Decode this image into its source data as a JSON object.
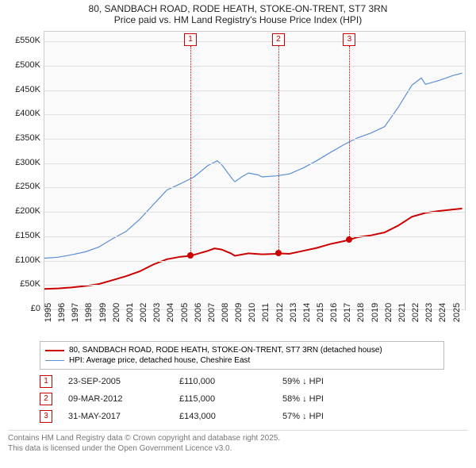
{
  "title1": "80, SANDBACH ROAD, RODE HEATH, STOKE-ON-TRENT, ST7 3RN",
  "title2": "Price paid vs. HM Land Registry's House Price Index (HPI)",
  "chart": {
    "type": "line",
    "background": "#fafafa",
    "grid_color": "#e0e0e0",
    "border_color": "#cccccc",
    "x": {
      "min": 1995,
      "max": 2025.9,
      "ticks": [
        1995,
        1996,
        1997,
        1998,
        1999,
        2000,
        2001,
        2002,
        2003,
        2004,
        2005,
        2006,
        2007,
        2008,
        2009,
        2010,
        2011,
        2012,
        2013,
        2014,
        2015,
        2016,
        2017,
        2018,
        2019,
        2020,
        2021,
        2022,
        2023,
        2024,
        2025
      ]
    },
    "y": {
      "min": 0,
      "max": 570000,
      "ticks": [
        0,
        50000,
        100000,
        150000,
        200000,
        250000,
        300000,
        350000,
        400000,
        450000,
        500000,
        550000
      ],
      "tick_labels": [
        "£0",
        "£50K",
        "£100K",
        "£150K",
        "£200K",
        "£250K",
        "£300K",
        "£350K",
        "£400K",
        "£450K",
        "£500K",
        "£550K"
      ]
    },
    "series": [
      {
        "name": "price_paid",
        "label": "80, SANDBACH ROAD, RODE HEATH, STOKE-ON-TRENT, ST7 3RN (detached house)",
        "color": "#cc0000",
        "width": 2,
        "points": [
          [
            1995,
            42000
          ],
          [
            1996,
            43000
          ],
          [
            1997,
            45000
          ],
          [
            1998,
            48000
          ],
          [
            1999,
            52000
          ],
          [
            2000,
            60000
          ],
          [
            2001,
            68000
          ],
          [
            2002,
            78000
          ],
          [
            2003,
            92000
          ],
          [
            2004,
            103000
          ],
          [
            2005,
            108000
          ],
          [
            2005.73,
            110000
          ],
          [
            2006,
            112000
          ],
          [
            2007,
            120000
          ],
          [
            2007.5,
            125000
          ],
          [
            2008,
            123000
          ],
          [
            2008.7,
            115000
          ],
          [
            2009,
            110000
          ],
          [
            2010,
            115000
          ],
          [
            2011,
            113000
          ],
          [
            2012,
            114000
          ],
          [
            2012.19,
            115000
          ],
          [
            2013,
            114000
          ],
          [
            2014,
            120000
          ],
          [
            2015,
            126000
          ],
          [
            2016,
            134000
          ],
          [
            2017,
            140000
          ],
          [
            2017.41,
            143000
          ],
          [
            2018,
            148000
          ],
          [
            2019,
            152000
          ],
          [
            2020,
            158000
          ],
          [
            2021,
            172000
          ],
          [
            2022,
            190000
          ],
          [
            2023,
            198000
          ],
          [
            2024,
            202000
          ],
          [
            2025,
            205000
          ],
          [
            2025.7,
            207000
          ]
        ]
      },
      {
        "name": "hpi",
        "label": "HPI: Average price, detached house, Cheshire East",
        "color": "#5b8fd6",
        "width": 1.2,
        "points": [
          [
            1995,
            105000
          ],
          [
            1996,
            107000
          ],
          [
            1997,
            112000
          ],
          [
            1998,
            118000
          ],
          [
            1999,
            128000
          ],
          [
            2000,
            145000
          ],
          [
            2001,
            160000
          ],
          [
            2002,
            185000
          ],
          [
            2003,
            215000
          ],
          [
            2004,
            245000
          ],
          [
            2005,
            258000
          ],
          [
            2006,
            272000
          ],
          [
            2007,
            295000
          ],
          [
            2007.7,
            305000
          ],
          [
            2008,
            298000
          ],
          [
            2008.8,
            268000
          ],
          [
            2009,
            262000
          ],
          [
            2009.5,
            272000
          ],
          [
            2010,
            280000
          ],
          [
            2010.7,
            276000
          ],
          [
            2011,
            272000
          ],
          [
            2012,
            274000
          ],
          [
            2013,
            278000
          ],
          [
            2014,
            290000
          ],
          [
            2015,
            305000
          ],
          [
            2016,
            322000
          ],
          [
            2017,
            338000
          ],
          [
            2018,
            352000
          ],
          [
            2019,
            362000
          ],
          [
            2020,
            375000
          ],
          [
            2021,
            415000
          ],
          [
            2022,
            460000
          ],
          [
            2022.7,
            475000
          ],
          [
            2023,
            462000
          ],
          [
            2024,
            470000
          ],
          [
            2025,
            480000
          ],
          [
            2025.7,
            485000
          ]
        ]
      }
    ],
    "sale_markers": [
      {
        "n": "1",
        "x": 2005.73,
        "y": 110000
      },
      {
        "n": "2",
        "x": 2012.19,
        "y": 115000
      },
      {
        "n": "3",
        "x": 2017.41,
        "y": 143000
      }
    ]
  },
  "legend": {
    "s1_color": "#cc0000",
    "s1_label": "80, SANDBACH ROAD, RODE HEATH, STOKE-ON-TRENT, ST7 3RN (detached house)",
    "s2_color": "#5b8fd6",
    "s2_label": "HPI: Average price, detached house, Cheshire East"
  },
  "sales": [
    {
      "n": "1",
      "date": "23-SEP-2005",
      "price": "£110,000",
      "delta": "59% ↓ HPI"
    },
    {
      "n": "2",
      "date": "09-MAR-2012",
      "price": "£115,000",
      "delta": "58% ↓ HPI"
    },
    {
      "n": "3",
      "date": "31-MAY-2017",
      "price": "£143,000",
      "delta": "57% ↓ HPI"
    }
  ],
  "attribution1": "Contains HM Land Registry data © Crown copyright and database right 2025.",
  "attribution2": "This data is licensed under the Open Government Licence v3.0."
}
